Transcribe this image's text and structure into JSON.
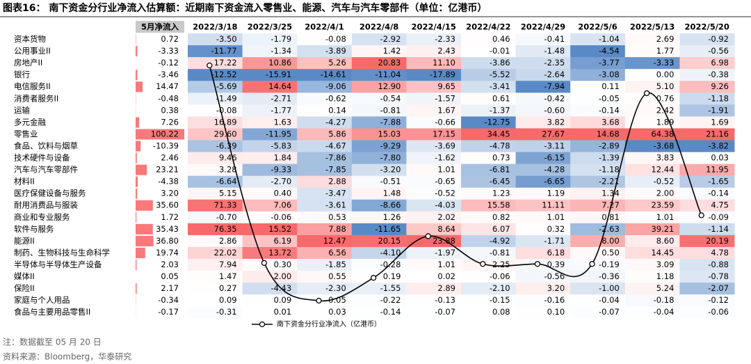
{
  "title": "图表16： 南下资金分行业净流入估算额：近期南下资金流入零售业、能源、汽车与汽车零部件（单位：亿港币）",
  "table": {
    "columns": [
      "5月净流入",
      "2022/3/18",
      "2022/3/25",
      "2022/4/1",
      "2022/4/8",
      "2022/4/15",
      "2022/4/22",
      "2022/4/29",
      "2022/5/6",
      "2022/5/13",
      "2022/5/20"
    ],
    "rows": [
      {
        "label": "资本货物",
        "values": [
          "0.72",
          "-3.50",
          "-1.79",
          "-0.08",
          "-2.92",
          "-2.33",
          "0.46",
          "-0.41",
          "-1.04",
          "2.69",
          "-0.92"
        ]
      },
      {
        "label": "公用事业II",
        "values": [
          "-3.33",
          "-11.77",
          "-1.34",
          "-3.89",
          "1.42",
          "2.43",
          "-0.01",
          "-1.48",
          "-4.54",
          "1.77",
          "-0.56"
        ]
      },
      {
        "label": "房地产II",
        "values": [
          "-0.12",
          "17.22",
          "10.86",
          "5.26",
          "20.83",
          "11.10",
          "-3.86",
          "-2.35",
          "-3.77",
          "-3.33",
          "6.98"
        ]
      },
      {
        "label": "银行",
        "values": [
          "-3.46",
          "-12.52",
          "-15.91",
          "-14.61",
          "-11.04",
          "-17.89",
          "-5.52",
          "-2.64",
          "-3.08",
          "0.00",
          "-0.38"
        ]
      },
      {
        "label": "电信服务II",
        "values": [
          "14.47",
          "-5.69",
          "14.64",
          "-9.06",
          "12.90",
          "9.65",
          "-3.41",
          "-7.94",
          "0.11",
          "5.10",
          "9.26"
        ]
      },
      {
        "label": "消费者服务II",
        "values": [
          "-0.48",
          "-1.49",
          "-2.71",
          "-0.62",
          "-0.54",
          "-1.57",
          "0.61",
          "-0.42",
          "-0.05",
          "0.76",
          "-1.18"
        ]
      },
      {
        "label": "运输",
        "values": [
          "0.38",
          "-0.08",
          "-1.77",
          "0.14",
          "-0.81",
          "1.67",
          "-1.37",
          "-0.60",
          "-0.14",
          "2.42",
          "-1.91"
        ]
      },
      {
        "label": "多元金融",
        "values": [
          "7.26",
          "16.89",
          "1.63",
          "-4.27",
          "-7.88",
          "-0.66",
          "-12.75",
          "3.82",
          "3.68",
          "1.89",
          "1.69"
        ]
      },
      {
        "label": "零售业",
        "values": [
          "100.22",
          "29.60",
          "-11.95",
          "5.86",
          "15.03",
          "17.15",
          "34.45",
          "27.67",
          "14.68",
          "64.38",
          "21.16"
        ]
      },
      {
        "label": "食品、饮料与烟草",
        "values": [
          "-10.39",
          "-6.39",
          "-5.83",
          "-4.67",
          "-9.29",
          "-3.69",
          "-4.78",
          "-3.11",
          "-2.89",
          "-3.68",
          "-3.82"
        ]
      },
      {
        "label": "技术硬件与设备",
        "values": [
          "2.46",
          "9.46",
          "1.84",
          "-7.86",
          "-7.80",
          "-1.62",
          "0.73",
          "-6.15",
          "-1.39",
          "3.83",
          "0.03"
        ]
      },
      {
        "label": "汽车与汽车零部件",
        "values": [
          "23.21",
          "3.28",
          "-9.33",
          "-7.85",
          "-3.20",
          "1.01",
          "-6.81",
          "-4.28",
          "-1.18",
          "12.44",
          "11.95"
        ]
      },
      {
        "label": "材料II",
        "values": [
          "-4.38",
          "-6.64",
          "-2.70",
          "2.88",
          "-0.51",
          "-0.65",
          "-6.45",
          "-6.65",
          "-2.21",
          "-0.52",
          "-1.65"
        ]
      },
      {
        "label": "医疗保健设备与服务",
        "values": [
          "3.20",
          "5.15",
          "0.40",
          "-3.47",
          "1.48",
          "-0.52",
          "1.23",
          "1.19",
          "1.34",
          "2.00",
          "-0.14"
        ]
      },
      {
        "label": "耐用消费品与服装",
        "values": [
          "35.60",
          "71.33",
          "7.06",
          "-3.61",
          "-8.66",
          "-4.03",
          "15.58",
          "11.11",
          "7.27",
          "23.59",
          "4.75"
        ]
      },
      {
        "label": "商业和专业服务",
        "values": [
          "1.72",
          "-0.70",
          "-0.06",
          "0.53",
          "1.26",
          "2.02",
          "0.82",
          "1.01",
          "0.81",
          "1.01",
          "-0.09"
        ]
      },
      {
        "label": "软件与服务",
        "values": [
          "35.43",
          "76.35",
          "15.52",
          "7.88",
          "-11.65",
          "8.64",
          "6.07",
          "0.32",
          "-2.63",
          "39.21",
          "-1.14"
        ]
      },
      {
        "label": "能源II",
        "values": [
          "36.80",
          "2.86",
          "6.19",
          "12.47",
          "20.15",
          "23.88",
          "-4.92",
          "-1.71",
          "8.00",
          "8.60",
          "20.19"
        ]
      },
      {
        "label": "制药、生物科技与生命科学",
        "values": [
          "19.74",
          "22.02",
          "13.72",
          "6.56",
          "-4.10",
          "-1.97",
          "-0.81",
          "6.18",
          "0.50",
          "14.45",
          "4.78"
        ]
      },
      {
        "label": "半导体与半导体生产设备",
        "values": [
          "2.03",
          "7.94",
          "0.30",
          "-1.85",
          "-0.28",
          "1.01",
          "2.25",
          "-0.39",
          "-0.19",
          "3.09",
          "-0.88"
        ]
      },
      {
        "label": "媒体II",
        "values": [
          "0.05",
          "1.47",
          "2.00",
          "0.55",
          "0.19",
          "0.02",
          "-0.06",
          "-0.56",
          "-0.36",
          "1.18",
          "-0.78"
        ]
      },
      {
        "label": "保险II",
        "values": [
          "2.17",
          "0.27",
          "-4.43",
          "-2.30",
          "-1.55",
          "2.89",
          "-2.10",
          "3.20",
          "-1.00",
          "5.24",
          "-2.07"
        ]
      },
      {
        "label": "家庭与个人用品",
        "values": [
          "-0.34",
          "0.09",
          "0.09",
          "-0.05",
          "-0.22",
          "-0.13",
          "-0.15",
          "-0.16",
          "-0.04",
          "-0.18",
          "-0.12"
        ]
      },
      {
        "label": "食品与主要用品零售II",
        "values": [
          "-0.17",
          "-0.31",
          "0.01",
          "0.03",
          "-0.14",
          "-0.07",
          "0.08",
          "0.10",
          "-0.07",
          "-0.04",
          "-0.06"
        ]
      }
    ]
  },
  "line": {
    "name": "南下资金分行业净流入（亿港币）",
    "color": "#000000",
    "values": [
      215,
      16,
      -22,
      1,
      43,
      15,
      15,
      15,
      187,
      64
    ]
  },
  "notes": [
    "注：数据截至 05 月 20 日",
    "资料来源：Bloomberg，华泰研究"
  ]
}
